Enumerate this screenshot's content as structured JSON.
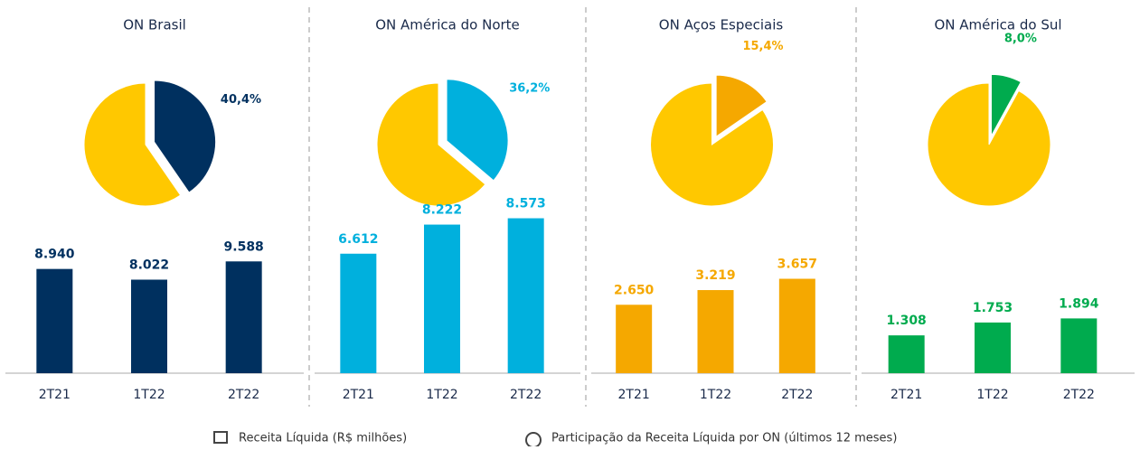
{
  "chart_data": [
    {
      "type": "pie",
      "title": "ON Brasil",
      "values": [
        40.4,
        59.6
      ],
      "value_labels": [
        "40,4%",
        null
      ],
      "colors": [
        "#00305f",
        "#ffc800"
      ]
    },
    {
      "type": "bar",
      "categories": [
        "2T21",
        "1T22",
        "2T22"
      ],
      "values": [
        8940,
        8022,
        9588
      ],
      "value_labels": [
        "8.940",
        "8.022",
        "9.588"
      ],
      "color": "#00305f",
      "ylim": [
        0,
        12400
      ]
    },
    {
      "type": "pie",
      "title": "ON América do Norte",
      "values": [
        36.2,
        63.8
      ],
      "value_labels": [
        "36,2%",
        null
      ],
      "colors": [
        "#00b0dd",
        "#ffc800"
      ]
    },
    {
      "type": "bar",
      "categories": [
        "2T21",
        "1T22",
        "2T22"
      ],
      "values": [
        6612,
        8222,
        8573
      ],
      "value_labels": [
        "6.612",
        "8.222",
        "8.573"
      ],
      "color": "#00b0dd",
      "ylim": [
        0,
        8000
      ]
    },
    {
      "type": "pie",
      "title": "ON Aços Especiais",
      "values": [
        15.4,
        84.6
      ],
      "value_labels": [
        "15,4%",
        null
      ],
      "colors": [
        "#f5a800",
        "#ffc800"
      ]
    },
    {
      "type": "bar",
      "categories": [
        "2T21",
        "1T22",
        "2T22"
      ],
      "values": [
        2650,
        3219,
        3657
      ],
      "value_labels": [
        "2.650",
        "3.219",
        "3.657"
      ],
      "color": "#f5a800",
      "ylim": [
        0,
        5600
      ]
    },
    {
      "type": "pie",
      "title": "ON América do Sul",
      "values": [
        8.0,
        92.0
      ],
      "value_labels": [
        "8,0%",
        null
      ],
      "colors": [
        "#00ab4e",
        "#ffc800"
      ]
    },
    {
      "type": "bar",
      "categories": [
        "2T21",
        "1T22",
        "2T22"
      ],
      "values": [
        1308,
        1753,
        1894
      ],
      "value_labels": [
        "1.308",
        "1.753",
        "1.894"
      ],
      "color": "#00ab4e",
      "ylim": [
        0,
        5000
      ]
    }
  ],
  "legend": {
    "items": [
      "Receita Líquida (R$ milhões)",
      "Participação da Receita Líquida por ON (últimos 12 meses)"
    ]
  }
}
